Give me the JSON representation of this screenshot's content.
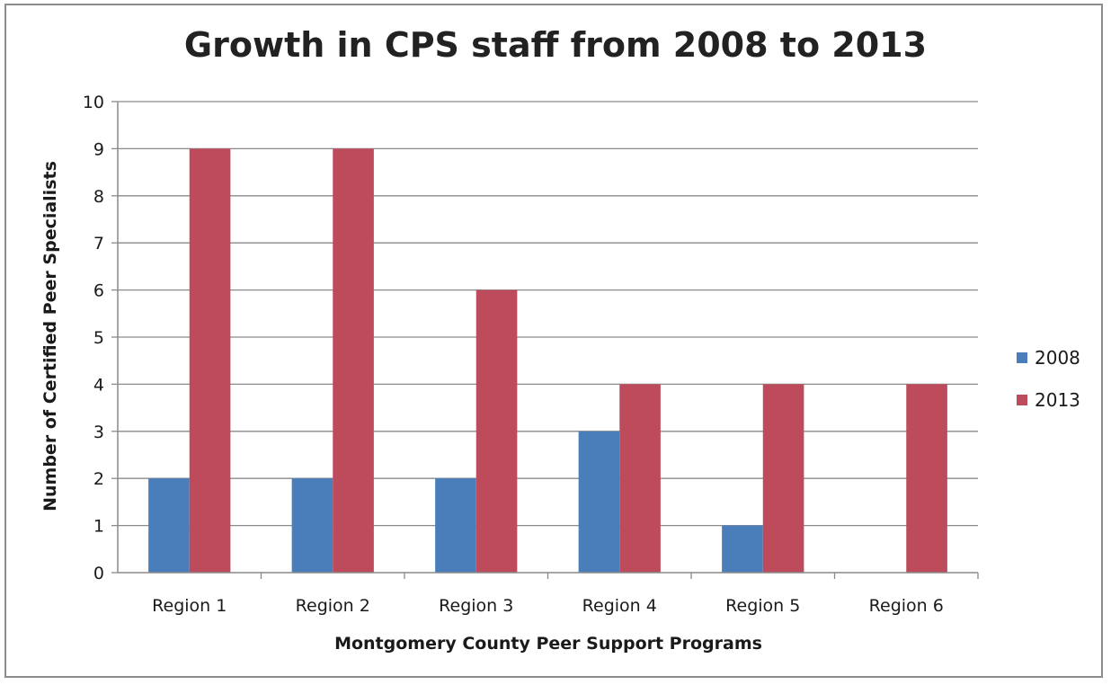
{
  "chart_data": {
    "type": "bar",
    "title": "Growth in CPS staff from 2008 to 2013",
    "xlabel": "Montgomery County Peer Support Programs",
    "ylabel": "Number of Certified Peer Specialists",
    "categories": [
      "Region 1",
      "Region 2",
      "Region 3",
      "Region 4",
      "Region 5",
      "Region 6"
    ],
    "series": [
      {
        "name": "2008",
        "color": "#4a7ebb",
        "values": [
          2,
          2,
          2,
          3,
          1,
          0
        ]
      },
      {
        "name": "2013",
        "color": "#be4b5b",
        "values": [
          9,
          9,
          6,
          4,
          4,
          4
        ]
      }
    ],
    "ylim": [
      0,
      10
    ],
    "yticks": [
      "0",
      "1",
      "2",
      "3",
      "4",
      "5",
      "6",
      "7",
      "8",
      "9",
      "10"
    ],
    "grid": true,
    "legend": "right"
  }
}
